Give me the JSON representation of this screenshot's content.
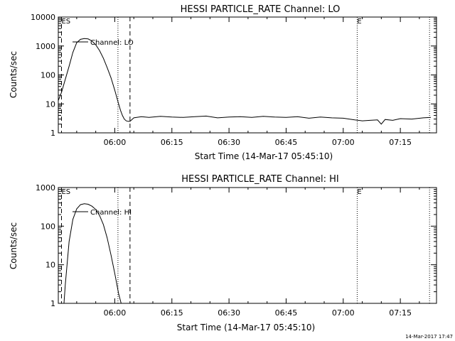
{
  "footer": {
    "timestamp": "14-Mar-2017 17:47"
  },
  "chart_data": [
    {
      "type": "line",
      "title": "HESSI PARTICLE_RATE Channel: LO",
      "xlabel": "Start Time (14-Mar-17 05:45:10)",
      "ylabel": "Counts/sec",
      "y_scale": "log",
      "ylim": [
        1,
        10000
      ],
      "xlim": [
        "05:45:10",
        "07:24:30"
      ],
      "x_ticks": [
        "06:00",
        "06:15",
        "06:30",
        "06:45",
        "07:00",
        "07:15"
      ],
      "y_ticks": [
        "1",
        "10",
        "100",
        "1000",
        "10000"
      ],
      "legend": {
        "label": "Channel: LO",
        "position": "top-left"
      },
      "markers": [
        {
          "label": "ES",
          "time": "05:46:00",
          "style": "dashed"
        },
        {
          "label": "",
          "time": "06:00:50",
          "style": "dotted"
        },
        {
          "label": "",
          "time": "06:04:00",
          "style": "dashed"
        },
        {
          "label": "E",
          "time": "07:03:40",
          "style": "dotted"
        },
        {
          "label": "",
          "time": "07:22:40",
          "style": "dotted"
        }
      ],
      "series": [
        {
          "x": [
            "05:45:10",
            "05:46:00",
            "05:47:00",
            "05:48:00",
            "05:49:00",
            "05:50:00",
            "05:51:00",
            "05:52:00",
            "05:53:00",
            "05:54:00",
            "05:55:00",
            "05:56:00",
            "05:57:00",
            "05:58:00",
            "05:59:00",
            "06:00:00",
            "06:00:50",
            "06:01:30",
            "06:02:00",
            "06:02:30",
            "06:03:00",
            "06:03:30",
            "06:04:00",
            "06:05:00",
            "06:07:00",
            "06:09:00",
            "06:12:00",
            "06:15:00",
            "06:18:00",
            "06:21:00",
            "06:24:00",
            "06:27:00",
            "06:30:00",
            "06:33:00",
            "06:36:00",
            "06:39:00",
            "06:42:00",
            "06:45:00",
            "06:48:00",
            "06:51:00",
            "06:54:00",
            "06:57:00",
            "07:00:00",
            "07:03:00",
            "07:05:00",
            "07:07:00",
            "07:09:00",
            "07:10:00",
            "07:11:00",
            "07:13:00",
            "07:15:00",
            "07:18:00",
            "07:21:00",
            "07:23:00"
          ],
          "values": [
            13,
            25,
            70,
            200,
            600,
            1300,
            1700,
            1800,
            1750,
            1500,
            1100,
            700,
            380,
            180,
            80,
            30,
            12,
            6,
            4,
            3,
            2.6,
            2.5,
            2.5,
            3.3,
            3.6,
            3.4,
            3.7,
            3.5,
            3.4,
            3.6,
            3.8,
            3.3,
            3.5,
            3.6,
            3.4,
            3.7,
            3.5,
            3.4,
            3.6,
            3.2,
            3.5,
            3.3,
            3.2,
            2.8,
            2.6,
            2.7,
            2.8,
            2.0,
            2.9,
            2.7,
            3.1,
            3.0,
            3.3,
            3.4
          ]
        }
      ]
    },
    {
      "type": "line",
      "title": "HESSI PARTICLE_RATE Channel: HI",
      "xlabel": "Start Time (14-Mar-17 05:45:10)",
      "ylabel": "Counts/sec",
      "y_scale": "log",
      "ylim": [
        1,
        1000
      ],
      "xlim": [
        "05:45:10",
        "07:24:30"
      ],
      "x_ticks": [
        "06:00",
        "06:15",
        "06:30",
        "06:45",
        "07:00",
        "07:15"
      ],
      "y_ticks": [
        "1",
        "10",
        "100",
        "1000"
      ],
      "legend": {
        "label": "Channel: HI",
        "position": "top-left"
      },
      "markers": [
        {
          "label": "ES",
          "time": "05:46:00",
          "style": "dashed"
        },
        {
          "label": "",
          "time": "06:00:50",
          "style": "dotted"
        },
        {
          "label": "",
          "time": "06:04:00",
          "style": "dashed"
        },
        {
          "label": "E",
          "time": "07:03:40",
          "style": "dotted"
        },
        {
          "label": "",
          "time": "07:22:40",
          "style": "dotted"
        }
      ],
      "series": [
        {
          "x": [
            "05:46:40",
            "05:47:00",
            "05:48:00",
            "05:49:00",
            "05:50:00",
            "05:51:00",
            "05:52:00",
            "05:53:00",
            "05:54:00",
            "05:55:00",
            "05:56:00",
            "05:57:00",
            "05:58:00",
            "05:59:00",
            "06:00:00",
            "06:01:00",
            "06:01:40"
          ],
          "values": [
            1,
            3,
            40,
            150,
            280,
            360,
            380,
            370,
            330,
            270,
            190,
            110,
            50,
            18,
            6,
            1.8,
            1
          ]
        }
      ]
    }
  ]
}
